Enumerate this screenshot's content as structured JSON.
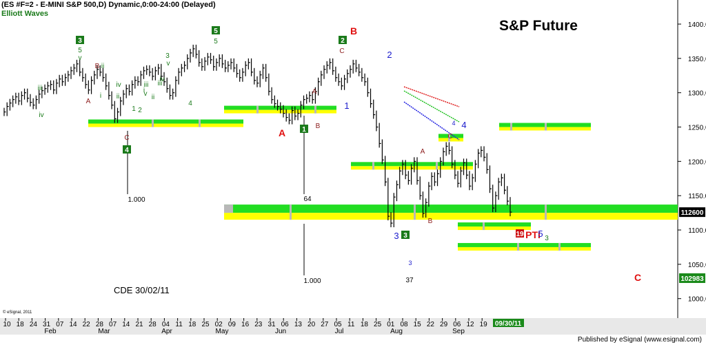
{
  "header": {
    "symbol_line": "(ES #F=2 - E-MINI S&P 500,D) Dynamic,0:00-24:00 (Delayed)",
    "study": "Elliott Waves",
    "big_title": "S&P Future",
    "footer": "Published by eSignal (www.esignal.com)",
    "copyright": "© eSignal, 2011",
    "cde_label": "CDE 30/02/11"
  },
  "colors": {
    "up_wave": "#1a7a1a",
    "down_wave": "#8b1a1a",
    "blue": "#1a1acc",
    "red": "#e01010",
    "band_green": "#22dd22",
    "band_yellow": "#ffff00",
    "band_gray": "#b8b8b8"
  },
  "chart_data": {
    "type": "bar",
    "title": "S&P Future",
    "y_axis": {
      "ticks": [
        "1400.00",
        "1350.00",
        "1300.00",
        "1250.00",
        "1200.00",
        "1150.00",
        "1100.00",
        "1050.00",
        "1000.00"
      ],
      "ylim": [
        985,
        1415
      ]
    },
    "x_axis": {
      "day_ticks": [
        "10",
        "18",
        "24",
        "31",
        "07",
        "14",
        "22",
        "28",
        "07",
        "14",
        "21",
        "28",
        "04",
        "11",
        "18",
        "25",
        "02",
        "09",
        "16",
        "23",
        "31",
        "06",
        "13",
        "20",
        "27",
        "05",
        "11",
        "18",
        "25",
        "01",
        "08",
        "15",
        "22",
        "29",
        "06",
        "12",
        "19"
      ],
      "months": [
        "Feb",
        "Mar",
        "Apr",
        "May",
        "Jun",
        "Jul",
        "Aug",
        "Sep"
      ],
      "current_date": "09/30/11"
    },
    "price_labels": {
      "last": "112600",
      "low": "102983"
    },
    "closes": [
      1272,
      1280,
      1285,
      1290,
      1294,
      1288,
      1296,
      1300,
      1292,
      1286,
      1282,
      1290,
      1298,
      1303,
      1306,
      1310,
      1312,
      1304,
      1314,
      1320,
      1316,
      1322,
      1326,
      1332,
      1336,
      1342,
      1330,
      1322,
      1312,
      1304,
      1318,
      1326,
      1334,
      1330,
      1322,
      1310,
      1296,
      1282,
      1262,
      1272,
      1288,
      1298,
      1306,
      1302,
      1312,
      1318,
      1316,
      1326,
      1332,
      1334,
      1330,
      1324,
      1332,
      1336,
      1324,
      1316,
      1306,
      1296,
      1300,
      1318,
      1330,
      1336,
      1340,
      1350,
      1358,
      1364,
      1356,
      1344,
      1338,
      1346,
      1352,
      1348,
      1338,
      1344,
      1350,
      1342,
      1336,
      1340,
      1344,
      1336,
      1328,
      1322,
      1330,
      1340,
      1344,
      1330,
      1318,
      1314,
      1326,
      1336,
      1322,
      1302,
      1290,
      1284,
      1280,
      1276,
      1270,
      1264,
      1260,
      1274,
      1266,
      1270,
      1282,
      1290,
      1292,
      1296,
      1290,
      1302,
      1316,
      1326,
      1334,
      1340,
      1344,
      1332,
      1322,
      1316,
      1310,
      1320,
      1328,
      1334,
      1342,
      1336,
      1330,
      1322,
      1316,
      1300,
      1284,
      1268,
      1250,
      1226,
      1202,
      1170,
      1120,
      1110,
      1148,
      1166,
      1186,
      1196,
      1180,
      1172,
      1190,
      1200,
      1172,
      1150,
      1124,
      1140,
      1164,
      1178,
      1170,
      1182,
      1200,
      1214,
      1222,
      1216,
      1196,
      1180,
      1168,
      1186,
      1198,
      1180,
      1164,
      1176,
      1196,
      1212,
      1216,
      1206,
      1188,
      1160,
      1132,
      1150,
      1170,
      1176,
      1158,
      1142,
      1126
    ],
    "bands": [
      {
        "label": "1.000",
        "value": 1255
      },
      {
        "label": "64",
        "value": 1275
      },
      {
        "label": "1.000",
        "value": 1125
      },
      {
        "value": 1193
      },
      {
        "value": 1234
      },
      {
        "value": 1105
      },
      {
        "value": 1075
      },
      {
        "value": 1250
      }
    ],
    "wave_labels": [
      {
        "text": "3",
        "kind": "boxed_green"
      },
      {
        "text": "5",
        "kind": "up"
      },
      {
        "text": "v",
        "kind": "up"
      },
      {
        "text": "B",
        "kind": "down"
      },
      {
        "text": "ii",
        "kind": "up"
      },
      {
        "text": "A",
        "kind": "down"
      },
      {
        "text": "iii",
        "kind": "up"
      },
      {
        "text": "iv",
        "kind": "up"
      },
      {
        "text": "i",
        "kind": "up"
      },
      {
        "text": "iv",
        "kind": "up"
      },
      {
        "text": "ii",
        "kind": "up"
      },
      {
        "text": "iii",
        "kind": "up"
      },
      {
        "text": "v",
        "kind": "up"
      },
      {
        "text": "C",
        "kind": "down"
      },
      {
        "text": "4",
        "kind": "boxed_green"
      },
      {
        "text": "1",
        "kind": "up"
      },
      {
        "text": "2",
        "kind": "up"
      },
      {
        "text": "i",
        "kind": "up"
      },
      {
        "text": "iii",
        "kind": "up"
      },
      {
        "text": "ii",
        "kind": "up"
      },
      {
        "text": "3",
        "kind": "up"
      },
      {
        "text": "v",
        "kind": "up"
      },
      {
        "text": "iv",
        "kind": "up"
      },
      {
        "text": "4",
        "kind": "up"
      },
      {
        "text": "5",
        "kind": "boxed_green"
      },
      {
        "text": "5",
        "kind": "up"
      },
      {
        "text": "A",
        "kind": "red"
      },
      {
        "text": "A",
        "kind": "down"
      },
      {
        "text": "B",
        "kind": "down"
      },
      {
        "text": "1",
        "kind": "boxed_green"
      },
      {
        "text": "2",
        "kind": "boxed_green"
      },
      {
        "text": "C",
        "kind": "down"
      },
      {
        "text": "B",
        "kind": "red"
      },
      {
        "text": "1",
        "kind": "blue"
      },
      {
        "text": "2",
        "kind": "blue"
      },
      {
        "text": "3",
        "kind": "blue"
      },
      {
        "text": "3",
        "kind": "boxed_green"
      },
      {
        "text": "3",
        "kind": "blue_small"
      },
      {
        "text": "37",
        "kind": "black"
      },
      {
        "text": "A",
        "kind": "down"
      },
      {
        "text": "B",
        "kind": "down"
      },
      {
        "text": "C",
        "kind": "down"
      },
      {
        "text": "4",
        "kind": "blue"
      },
      {
        "text": "4",
        "kind": "blue_small"
      },
      {
        "text": "19",
        "kind": "boxed_red"
      },
      {
        "text": "PTI",
        "kind": "red"
      },
      {
        "text": "5",
        "kind": "blue"
      },
      {
        "text": "3",
        "kind": "up"
      },
      {
        "text": "C",
        "kind": "red"
      }
    ]
  }
}
